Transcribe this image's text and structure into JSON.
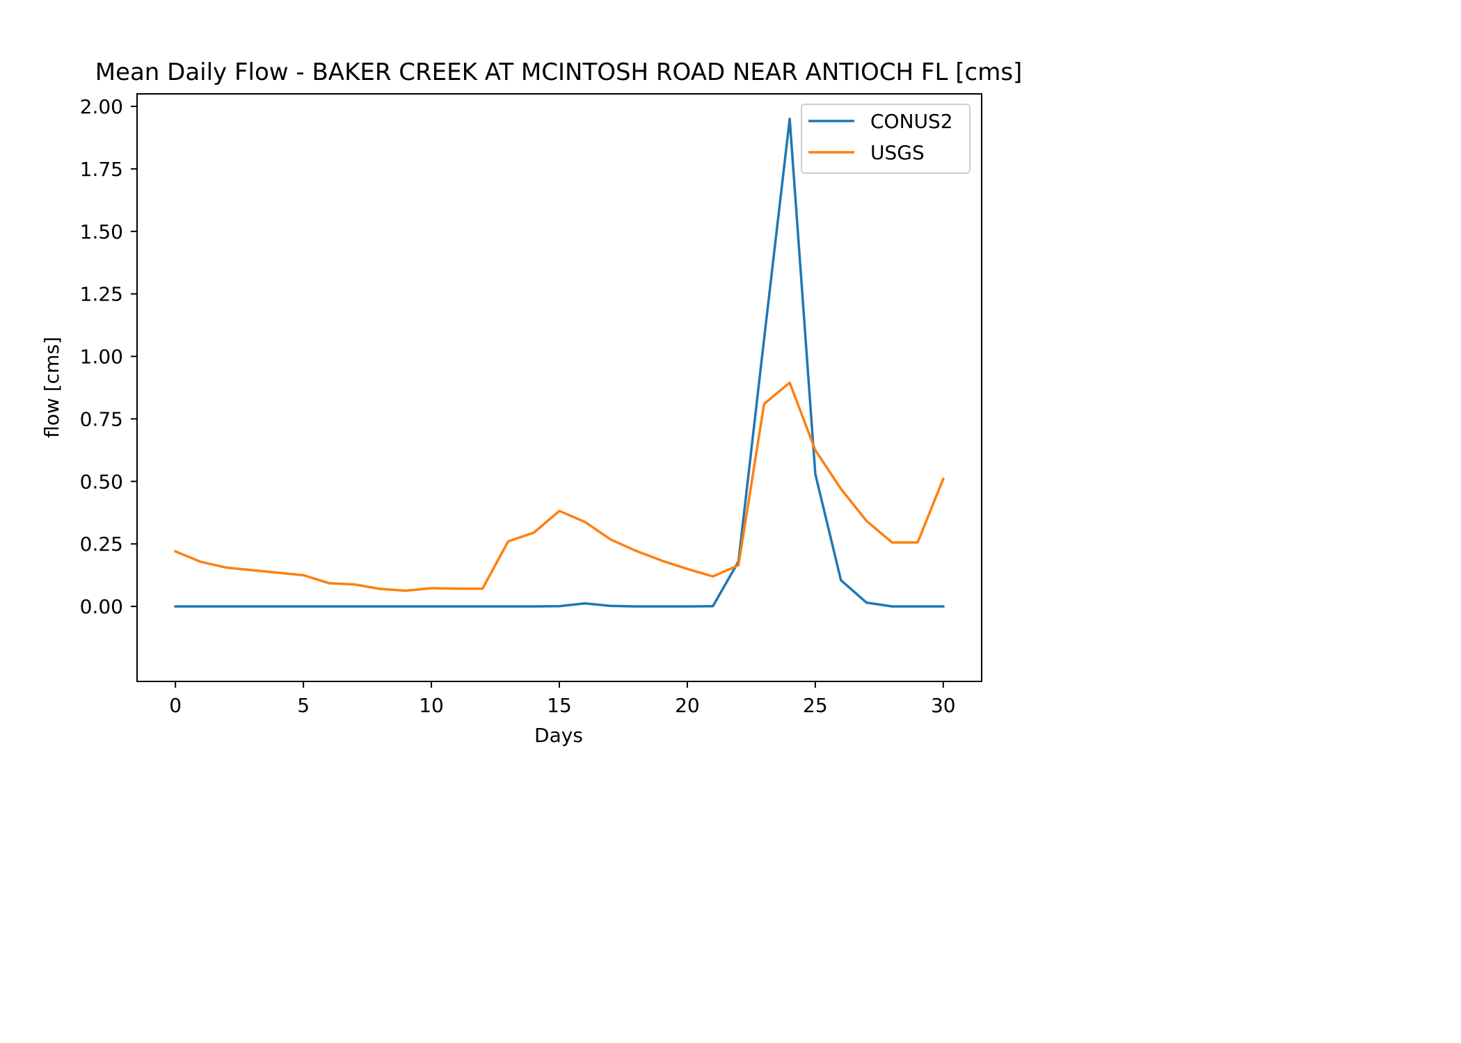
{
  "chart_data": {
    "type": "line",
    "title": "Mean Daily Flow - BAKER CREEK AT MCINTOSH ROAD NEAR ANTIOCH FL [cms]",
    "xlabel": "Days",
    "ylabel": "flow [cms]",
    "xlim": [
      -1.5,
      31.5
    ],
    "ylim": [
      -0.3,
      2.05
    ],
    "x_ticks": [
      0,
      5,
      10,
      15,
      20,
      25,
      30
    ],
    "x_tick_labels": [
      "0",
      "5",
      "10",
      "15",
      "20",
      "25",
      "30"
    ],
    "y_ticks": [
      0,
      0.25,
      0.5,
      0.75,
      1.0,
      1.25,
      1.5,
      1.75,
      2.0
    ],
    "y_tick_labels": [
      "0.00",
      "0.25",
      "0.50",
      "0.75",
      "1.00",
      "1.25",
      "1.50",
      "1.75",
      "2.00"
    ],
    "grid": false,
    "legend_position": "top-right",
    "x": [
      0,
      1,
      2,
      3,
      4,
      5,
      6,
      7,
      8,
      9,
      10,
      11,
      12,
      13,
      14,
      15,
      16,
      17,
      18,
      19,
      20,
      21,
      22,
      23,
      24,
      25,
      26,
      27,
      28,
      29,
      30
    ],
    "series": [
      {
        "name": "CONUS2",
        "color": "#1f77b4",
        "values": [
          0.0,
          0.0,
          0.0,
          0.0,
          0.0,
          0.0,
          0.0,
          0.0,
          0.0,
          0.0,
          0.0,
          0.0,
          0.0,
          0.0,
          0.0,
          0.001,
          0.012,
          0.002,
          0.0,
          0.0,
          0.0,
          0.001,
          0.18,
          1.07,
          1.95,
          0.53,
          0.105,
          0.015,
          0.0,
          0.0,
          0.0
        ]
      },
      {
        "name": "USGS",
        "color": "#ff7f0e",
        "values": [
          0.22,
          0.178,
          0.155,
          0.145,
          0.135,
          0.125,
          0.093,
          0.088,
          0.07,
          0.063,
          0.073,
          0.071,
          0.071,
          0.26,
          0.295,
          0.382,
          0.338,
          0.268,
          0.222,
          0.183,
          0.15,
          0.12,
          0.165,
          0.81,
          0.895,
          0.625,
          0.47,
          0.342,
          0.256,
          0.256,
          0.51
        ]
      }
    ]
  }
}
